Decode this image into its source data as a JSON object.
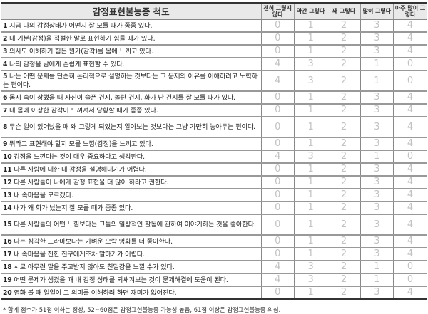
{
  "title": "감정표현불능증 척도",
  "options": [
    "전혀 그렇지 않다",
    "약간 그렇다",
    "꽤 그렇다",
    "많이 그렇다",
    "아주 많이 그렇다"
  ],
  "items": [
    {
      "num": "1",
      "text": "지금 나의 감정상태가 어떤지 잘 모를 때가 종종 있다.",
      "scores": [
        "0",
        "1",
        "2",
        "3",
        "4"
      ]
    },
    {
      "num": "2",
      "text": "내 기분(감정)을 적절한 말로 표현하기 힘들 때가 있다.",
      "scores": [
        "0",
        "1",
        "2",
        "3",
        "4"
      ]
    },
    {
      "num": "3",
      "text": "의사도 이해하기 힘든 뭔가(감각)를 몸에 느끼고 있다.",
      "scores": [
        "0",
        "1",
        "2",
        "3",
        "4"
      ]
    },
    {
      "num": "4",
      "text": "나의 감정을 남에게 손쉽게 표현할 수 있다.",
      "scores": [
        "4",
        "3",
        "2",
        "1",
        "0"
      ]
    },
    {
      "num": "5",
      "text": "나는 어떤 문제를 단순히 논리적으로 설명하는 것보다는 그 문제의 이유를 이해하려고 노력하는 편이다.",
      "scores": [
        "4",
        "3",
        "2",
        "1",
        "0"
      ],
      "tall": true
    },
    {
      "num": "6",
      "text": "몸시 속이 상했을 때 자신이 슬픈 건지, 놀란 건지, 화가 난 건지를 잘 모를 때가 있다.",
      "scores": [
        "0",
        "1",
        "2",
        "3",
        "4"
      ]
    },
    {
      "num": "7",
      "text": "내 몸에 이상한 감각이 느껴져서 당황할 때가 종종 있다.",
      "scores": [
        "0",
        "1",
        "2",
        "3",
        "4"
      ]
    },
    {
      "num": "8",
      "text": "무슨 일이 있어났을 때 왜 그렇게 되었는지 알아보는 것보다는 그냥 가만히 놓아두는 편이다.",
      "scores": [
        "0",
        "1",
        "2",
        "3",
        "4"
      ],
      "tall": true
    },
    {
      "num": "9",
      "text": "뭐라고 표현해야 할지 모를 느낌(감정)을 느끼고 있다.",
      "scores": [
        "0",
        "1",
        "2",
        "3",
        "4"
      ]
    },
    {
      "num": "10",
      "text": "감정을 느낀다는 것이 매우 중요하다고 생각한다.",
      "scores": [
        "4",
        "3",
        "2",
        "1",
        "0"
      ]
    },
    {
      "num": "11",
      "text": "다른 사람에 대한 내 감정을 설명해내기가 어렵다.",
      "scores": [
        "0",
        "1",
        "2",
        "3",
        "4"
      ]
    },
    {
      "num": "12",
      "text": "다른 사람들이 나에게 감정 표현을 더 많이 하라고 권한다.",
      "scores": [
        "0",
        "1",
        "2",
        "3",
        "4"
      ]
    },
    {
      "num": "13",
      "text": "내 속마음을 모르겠다.",
      "scores": [
        "0",
        "1",
        "2",
        "3",
        "4"
      ]
    },
    {
      "num": "14",
      "text": "내가 왜 화가 났는지 잘 모를 때가 종종 있다.",
      "scores": [
        "0",
        "1",
        "2",
        "3",
        "4"
      ]
    },
    {
      "num": "15",
      "text": "다른 사람들의 어떤 느낌보다는 그들의 일상적인 활동에 관하여 이야기하는 것을 좋아한다.",
      "scores": [
        "0",
        "1",
        "2",
        "3",
        "4"
      ],
      "tall": true
    },
    {
      "num": "16",
      "text": "나는 심각한 드라마보다는 가벼운 오락 영화를 더 좋아한다.",
      "scores": [
        "0",
        "1",
        "2",
        "3",
        "4"
      ]
    },
    {
      "num": "17",
      "text": "내 속마음을 친한 친구에게조차 말하기가 어렵다.",
      "scores": [
        "0",
        "1",
        "2",
        "3",
        "4"
      ]
    },
    {
      "num": "18",
      "text": "서로 아무런 말을 주고받지 않아도 친밀감을 느낄 수가 있다.",
      "scores": [
        "4",
        "3",
        "2",
        "1",
        "0"
      ]
    },
    {
      "num": "19",
      "text": "어떤 문제가 생겼을 때 내 감정 상태를 되새겨보는 것이 문제해결에 도움이 된다.",
      "scores": [
        "4",
        "3",
        "2",
        "1",
        "0"
      ]
    },
    {
      "num": "20",
      "text": "영화 볼 때 일일이 그 의미를 이해하려 하면 재미가 없어진다.",
      "scores": [
        "0",
        "1",
        "2",
        "3",
        "4"
      ]
    }
  ],
  "footnote": "* 합계 점수가 51점 이하는 정상, 52~60점은 감정표현불능증 가능성 높음, 61점 이상은 감정표현불능증 의심."
}
